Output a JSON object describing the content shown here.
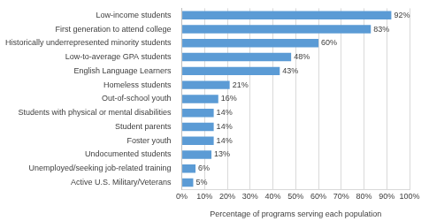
{
  "chart_data": {
    "type": "bar",
    "orientation": "horizontal",
    "categories": [
      "Low-income students",
      "First generation to attend college",
      "Historically underrepresented minority students",
      "Low-to-average GPA students",
      "English Language Learners",
      "Homeless students",
      "Out-of-school youth",
      "Students with physical or mental disabilities",
      "Student parents",
      "Foster youth",
      "Undocumented students",
      "Unemployed/seeking job-related training",
      "Active U.S. Military/Veterans"
    ],
    "values": [
      92,
      83,
      60,
      48,
      43,
      21,
      16,
      14,
      14,
      14,
      13,
      6,
      5
    ],
    "value_labels": [
      "92%",
      "83%",
      "60%",
      "48%",
      "43%",
      "21%",
      "16%",
      "14%",
      "14%",
      "14%",
      "13%",
      "6%",
      "5%"
    ],
    "color": "#5b9bd5",
    "x_label": "Percentage of programs serving each population",
    "xlim": [
      0,
      100
    ],
    "xticks": [
      {
        "value": 0,
        "label": "0%"
      },
      {
        "value": 10,
        "label": "10%"
      },
      {
        "value": 20,
        "label": "20%"
      },
      {
        "value": 30,
        "label": "30%"
      },
      {
        "value": 40,
        "label": "40%"
      },
      {
        "value": 50,
        "label": "50%"
      },
      {
        "value": 60,
        "label": "60%"
      },
      {
        "value": 70,
        "label": "70%"
      },
      {
        "value": 80,
        "label": "80%"
      },
      {
        "value": 90,
        "label": "90%"
      },
      {
        "value": 100,
        "label": "100%"
      }
    ],
    "grid": true,
    "data_labels": true
  }
}
